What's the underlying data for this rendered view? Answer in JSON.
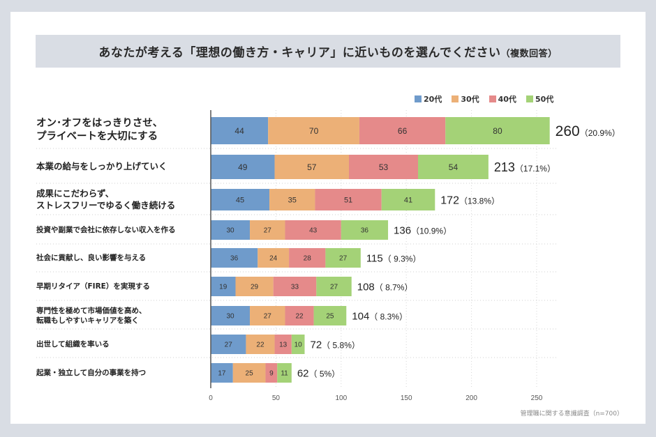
{
  "title": {
    "main": "あなたが考える「理想の働き方・キャリア」に近いものを選んでください",
    "sub": "（複数回答）"
  },
  "source": "管理職に関する意識調査（n=700）",
  "chart_data": {
    "type": "bar",
    "orientation": "horizontal",
    "stacked": true,
    "title": "あなたが考える「理想の働き方・キャリア」に近いものを選んでください（複数回答）",
    "xlabel": "",
    "ylabel": "",
    "xlim": [
      0,
      260
    ],
    "xticks": [
      0,
      50,
      100,
      150,
      200,
      250
    ],
    "grid": true,
    "legend_position": "top-right",
    "categories": [
      "オン･オフをはっきりさせ、\nプライベートを大切にする",
      "本業の給与をしっかり上げていく",
      "成果にこだわらず、\nストレスフリーでゆるく働き続ける",
      "投資や副業で会社に依存しない収入を作る",
      "社会に貢献し、良い影響を与える",
      "早期リタイア（FIRE）を実現する",
      "専門性を極めて市場価値を高め、\n転職もしやすいキャリアを築く",
      "出世して組織を率いる",
      "起業・独立して自分の事業を持つ"
    ],
    "series": [
      {
        "name": "20代",
        "color": "#6f9bcb",
        "values": [
          44,
          49,
          45,
          30,
          36,
          19,
          30,
          27,
          17
        ]
      },
      {
        "name": "30代",
        "color": "#ecb077",
        "values": [
          70,
          57,
          35,
          27,
          24,
          29,
          27,
          22,
          25
        ]
      },
      {
        "name": "40代",
        "color": "#e58a8a",
        "values": [
          66,
          53,
          51,
          43,
          28,
          33,
          22,
          13,
          9
        ]
      },
      {
        "name": "50代",
        "color": "#a4d277",
        "values": [
          80,
          54,
          41,
          36,
          27,
          27,
          25,
          10,
          11
        ]
      }
    ],
    "totals": [
      260,
      213,
      172,
      136,
      115,
      108,
      104,
      72,
      62
    ],
    "total_labels": [
      "（20.9%）",
      "（17.1%）",
      "（13.8%）",
      "（10.9%）",
      "（ 9.3%）",
      "（ 8.7%）",
      "（ 8.3%）",
      "（ 5.8%）",
      "（ 5%）"
    ]
  }
}
